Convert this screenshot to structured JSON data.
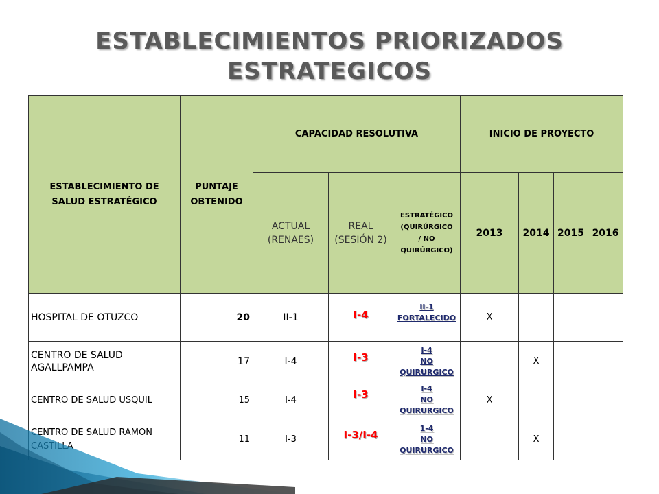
{
  "title": {
    "line1": "ESTABLECIMIENTOS PRIORIZADOS",
    "line2": "ESTRATEGICOS"
  },
  "table": {
    "headers": {
      "establecimiento": "ESTABLECIMIENTO DE SALUD ESTRATÉGICO",
      "puntaje": "PUNTAJE OBTENIDO",
      "capacidad": "CAPACIDAD RESOLUTIVA",
      "inicio": "INICIO DE PROYECTO",
      "actual": "ACTUAL (RENAES)",
      "real": "REAL (SESIÓN 2)",
      "estrategico_1": "ESTRATÉGICO",
      "estrategico_2": "(QUIRÚRGICO",
      "estrategico_3": "/ NO",
      "estrategico_4": "QUIRÚRGICO",
      "estrategico_paren": ")",
      "years": [
        "2013",
        "2014",
        "2015",
        "2016"
      ]
    },
    "rows": [
      {
        "name": "HOSPITAL DE OTUZCO",
        "score": "20",
        "actual": "II-1",
        "real": "I-4",
        "estrategico": [
          "II-1",
          "FORTALECIDO"
        ],
        "marks": [
          "X",
          "",
          "",
          ""
        ]
      },
      {
        "name": "CENTRO DE SALUD AGALLPAMPA",
        "score": "17",
        "actual": "I-4",
        "real": "I-3",
        "estrategico": [
          "I-4",
          "NO",
          "QUIRURGICO"
        ],
        "marks": [
          "",
          "X",
          "",
          ""
        ]
      },
      {
        "name": "CENTRO DE SALUD USQUIL",
        "score": "15",
        "actual": "I-4",
        "real": "I-3",
        "estrategico": [
          "I-4",
          "NO",
          "QUIRURGICO"
        ],
        "marks": [
          "X",
          "",
          "",
          ""
        ]
      },
      {
        "name": "CENTRO DE SALUD RAMON CASTILLA",
        "score": "11",
        "actual": "I-3",
        "real": "I-3/I-4",
        "estrategico": [
          "1-4",
          "NO",
          "QUIRURGICO"
        ],
        "marks": [
          "",
          "X",
          "",
          ""
        ]
      }
    ]
  },
  "colors": {
    "header_bg": "#c4d79b",
    "title_text": "#595959",
    "real_text": "#ff0000",
    "estrategico_text": "#1f2a6e"
  }
}
